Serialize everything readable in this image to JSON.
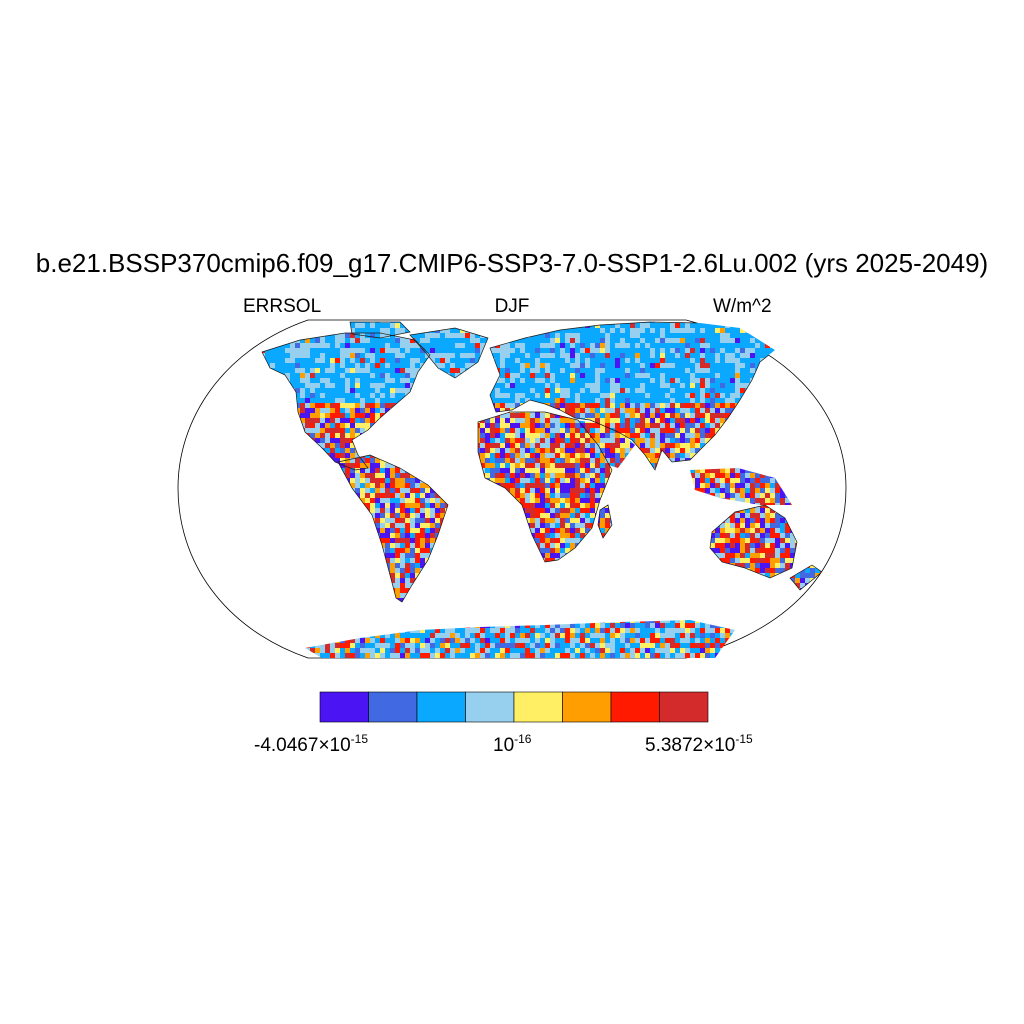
{
  "title": "b.e21.BSSP370cmip6.f09_g17.CMIP6-SSP3-7.0-SSP1-2.6Lu.002 (yrs 2025-2049)",
  "subtitle": {
    "left": "ERRSOL",
    "center": "DJF",
    "right": "W/m^2"
  },
  "colorbar": {
    "colors": [
      "#4a14f3",
      "#4169e1",
      "#0aa8ff",
      "#96d0ee",
      "#ffef64",
      "#ff9e00",
      "#ff1a00",
      "#d32b2b"
    ],
    "labels": [
      {
        "mantissa": "-4.0467×10",
        "exponent": "-15"
      },
      {
        "mantissa": "10",
        "exponent": "-16"
      },
      {
        "mantissa": "5.3872×10",
        "exponent": "-15"
      }
    ]
  }
}
